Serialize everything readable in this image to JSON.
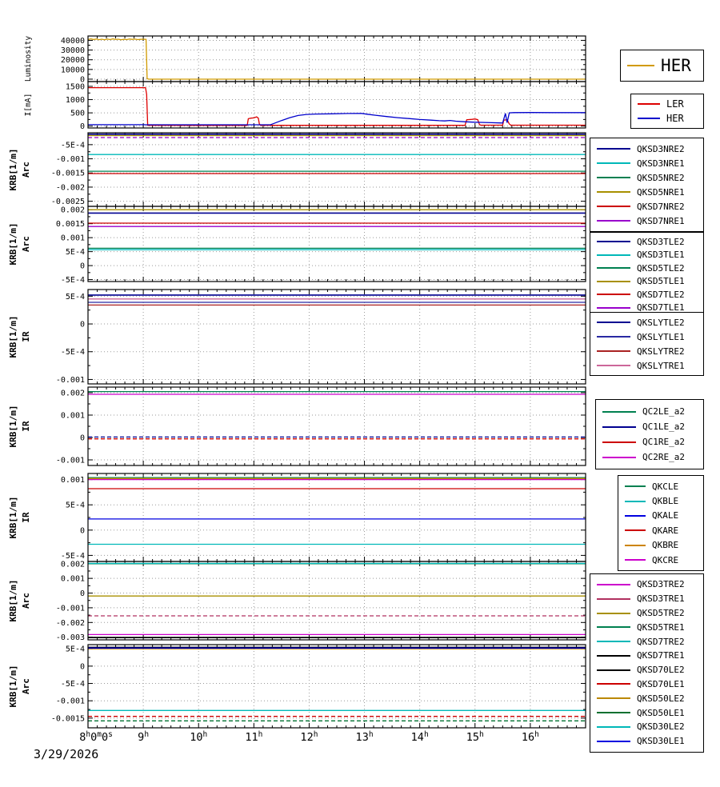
{
  "date_label": "3/29/2026",
  "x_axis": {
    "range": [
      8,
      17
    ],
    "major_hours": [
      8,
      9,
      10,
      11,
      12,
      13,
      14,
      15,
      16
    ],
    "labels": [
      "8^h0^m0^s",
      "9^h",
      "10^h",
      "11^h",
      "12^h",
      "13^h",
      "14^h",
      "15^h",
      "16^h"
    ]
  },
  "chart_data": [
    {
      "type": "line",
      "name": "luminosity",
      "ylabel": [
        "Luminosity"
      ],
      "ylim": [
        -2500,
        44500
      ],
      "yticks": [
        {
          "v": 0,
          "label": "0"
        },
        {
          "v": 10000,
          "label": "10000"
        },
        {
          "v": 20000,
          "label": "20000"
        },
        {
          "v": 30000,
          "label": "30000"
        },
        {
          "v": 40000,
          "label": "40000"
        }
      ],
      "series": [
        {
          "name": "HER",
          "color": "#d19a00",
          "points": [
            [
              8,
              40800
            ],
            [
              8.05,
              41600
            ],
            [
              8.1,
              40900
            ],
            [
              8.15,
              41400
            ],
            [
              8.2,
              40700
            ],
            [
              8.25,
              41200
            ],
            [
              8.3,
              40600
            ],
            [
              8.35,
              41300
            ],
            [
              8.4,
              40800
            ],
            [
              8.45,
              41500
            ],
            [
              8.5,
              40900
            ],
            [
              8.55,
              41200
            ],
            [
              8.6,
              40600
            ],
            [
              8.65,
              41100
            ],
            [
              8.7,
              40800
            ],
            [
              8.75,
              41400
            ],
            [
              8.8,
              41000
            ],
            [
              8.85,
              41300
            ],
            [
              8.9,
              40800
            ],
            [
              8.95,
              41000
            ],
            [
              9.0,
              41200
            ],
            [
              9.05,
              41000
            ],
            [
              9.07,
              500
            ],
            [
              9.1,
              0
            ],
            [
              17,
              0
            ]
          ]
        }
      ]
    },
    {
      "type": "line",
      "name": "beam-current",
      "ylabel": [
        "I[mA]"
      ],
      "ylim": [
        -70,
        1680
      ],
      "yticks": [
        {
          "v": 0,
          "label": "0"
        },
        {
          "v": 500,
          "label": "500"
        },
        {
          "v": 1000,
          "label": "1000"
        },
        {
          "v": 1500,
          "label": "1500"
        }
      ],
      "series": [
        {
          "name": "LER",
          "color": "#dd0000",
          "points": [
            [
              8,
              1450
            ],
            [
              9.04,
              1450
            ],
            [
              9.06,
              1200
            ],
            [
              9.08,
              30
            ],
            [
              10.88,
              25
            ],
            [
              10.9,
              280
            ],
            [
              10.95,
              300
            ],
            [
              11.0,
              310
            ],
            [
              11.05,
              350
            ],
            [
              11.08,
              300
            ],
            [
              11.1,
              80
            ],
            [
              11.12,
              30
            ],
            [
              14.82,
              30
            ],
            [
              14.85,
              240
            ],
            [
              14.95,
              255
            ],
            [
              15.0,
              270
            ],
            [
              15.05,
              240
            ],
            [
              15.08,
              60
            ],
            [
              15.1,
              35
            ],
            [
              15.5,
              35
            ],
            [
              15.52,
              225
            ],
            [
              15.58,
              240
            ],
            [
              15.62,
              80
            ],
            [
              15.65,
              35
            ],
            [
              17,
              35
            ]
          ]
        },
        {
          "name": "HER",
          "color": "#0000cc",
          "points": [
            [
              8,
              55
            ],
            [
              9.0,
              55
            ],
            [
              9.05,
              50
            ],
            [
              11.3,
              50
            ],
            [
              11.35,
              90
            ],
            [
              11.5,
              210
            ],
            [
              11.65,
              320
            ],
            [
              11.8,
              400
            ],
            [
              11.95,
              440
            ],
            [
              12.1,
              455
            ],
            [
              12.4,
              465
            ],
            [
              12.7,
              475
            ],
            [
              12.95,
              480
            ],
            [
              13.05,
              450
            ],
            [
              13.2,
              410
            ],
            [
              13.4,
              360
            ],
            [
              13.6,
              320
            ],
            [
              13.8,
              285
            ],
            [
              14.0,
              250
            ],
            [
              14.2,
              225
            ],
            [
              14.35,
              205
            ],
            [
              14.45,
              195
            ],
            [
              14.55,
              215
            ],
            [
              14.65,
              185
            ],
            [
              14.8,
              165
            ],
            [
              14.95,
              150
            ],
            [
              15.1,
              140
            ],
            [
              15.3,
              128
            ],
            [
              15.45,
              120
            ],
            [
              15.5,
              118
            ],
            [
              15.55,
              480
            ],
            [
              15.58,
              130
            ],
            [
              15.62,
              500
            ],
            [
              15.7,
              510
            ],
            [
              16.0,
              512
            ],
            [
              16.4,
              508
            ],
            [
              17,
              508
            ]
          ]
        }
      ]
    },
    {
      "type": "line",
      "name": "krb-arc-nre",
      "ylabel": [
        "KRB[1/m]",
        "Arc"
      ],
      "ylim": [
        -0.00268,
        -8e-05
      ],
      "yticks": [
        {
          "v": -0.0005,
          "label": "-5E-4"
        },
        {
          "v": -0.001,
          "label": "-0.001"
        },
        {
          "v": -0.0015,
          "label": "-0.0015"
        },
        {
          "v": -0.002,
          "label": "-0.002"
        },
        {
          "v": -0.0025,
          "label": "-0.0025"
        }
      ],
      "series": [
        {
          "name": "QKSD3NRE2",
          "color": "#000090",
          "value": -0.00013,
          "width": 1.6
        },
        {
          "name": "QKSD3NRE1",
          "color": "#00b8b8",
          "value": -0.00085
        },
        {
          "name": "QKSD5NRE2",
          "color": "#008050",
          "value": -0.00144
        },
        {
          "name": "QKSD5NRE1",
          "color": "#a89000",
          "value": -0.00018
        },
        {
          "name": "QKSD7NRE2",
          "color": "#cc0000",
          "value": -0.00152
        },
        {
          "name": "QKSD7NRE1",
          "color": "#9900cc",
          "value": -0.00025,
          "dash": true
        }
      ]
    },
    {
      "type": "line",
      "name": "krb-arc-tle",
      "ylabel": [
        "KRB[1/m]",
        "Arc"
      ],
      "ylim": [
        -0.00057,
        0.00212
      ],
      "yticks": [
        {
          "v": 0.002,
          "label": "0.002"
        },
        {
          "v": 0.0015,
          "label": "0.0015"
        },
        {
          "v": 0.001,
          "label": "0.001"
        },
        {
          "v": 0.0005,
          "label": "5E-4"
        },
        {
          "v": 0,
          "label": "0"
        },
        {
          "v": -0.0005,
          "label": "-5E-4"
        }
      ],
      "series": [
        {
          "name": "QKSD3TLE2",
          "color": "#000090",
          "value": 0.00188,
          "width": 1.6
        },
        {
          "name": "QKSD3TLE1",
          "color": "#00b8b8",
          "value": 0.00057
        },
        {
          "name": "QKSD5TLE2",
          "color": "#008050",
          "value": 0.00062
        },
        {
          "name": "QKSD5TLE1",
          "color": "#a89000",
          "value": 0.002
        },
        {
          "name": "QKSD7TLE2",
          "color": "#cc0000",
          "value": 0.00152
        },
        {
          "name": "QKSD7TLE1",
          "color": "#9900cc",
          "value": 0.0014
        }
      ]
    },
    {
      "type": "line",
      "name": "krb-ir-sly",
      "ylabel": [
        "KRB[1/m]",
        "IR"
      ],
      "ylim": [
        -0.00108,
        0.00062
      ],
      "yticks": [
        {
          "v": 0.0005,
          "label": "5E-4"
        },
        {
          "v": 0,
          "label": "0"
        },
        {
          "v": -0.0005,
          "label": "-5E-4"
        },
        {
          "v": -0.001,
          "label": "-0.001"
        }
      ],
      "series": [
        {
          "name": "QKSLYTLE2",
          "color": "#000090",
          "value": 0.00052,
          "width": 1.6
        },
        {
          "name": "QKSLYTLE1",
          "color": "#2929a3",
          "value": 0.00039
        },
        {
          "name": "QKSLYTRE2",
          "color": "#aa2222",
          "value": 0.00034
        },
        {
          "name": "QKSLYTRE1",
          "color": "#cc6699",
          "value": 0.00045
        }
      ]
    },
    {
      "type": "line",
      "name": "krb-ir-qc",
      "ylabel": [
        "KRB[1/m]",
        "IR"
      ],
      "ylim": [
        -0.00125,
        0.00225
      ],
      "yticks": [
        {
          "v": 0.002,
          "label": "0.002"
        },
        {
          "v": 0.001,
          "label": "0.001"
        },
        {
          "v": 0,
          "label": "0"
        },
        {
          "v": -0.001,
          "label": "-0.001"
        }
      ],
      "series": [
        {
          "name": "QC2LE_a2",
          "color": "#008050",
          "value": 0.00205
        },
        {
          "name": "QC1LE_a2",
          "color": "#000090",
          "value": 2e-05,
          "dash": true
        },
        {
          "name": "QC1RE_a2",
          "color": "#cc0000",
          "value": -6e-05,
          "dash": true
        },
        {
          "name": "QC2RE_a2",
          "color": "#cc00cc",
          "value": 0.00193
        }
      ]
    },
    {
      "type": "line",
      "name": "krb-ir-qk",
      "ylabel": [
        "KRB[1/m]",
        "IR"
      ],
      "ylim": [
        -0.00062,
        0.00112
      ],
      "yticks": [
        {
          "v": 0.001,
          "label": "0.001"
        },
        {
          "v": 0.0005,
          "label": "5E-4"
        },
        {
          "v": 0,
          "label": "0"
        },
        {
          "v": -0.0005,
          "label": "-5E-4"
        }
      ],
      "series": [
        {
          "name": "QKCLE",
          "color": "#008050",
          "value": 0.00104
        },
        {
          "name": "QKBLE",
          "color": "#00b8b8",
          "value": -0.00028
        },
        {
          "name": "QKALE",
          "color": "#0000e0",
          "value": 0.00022
        },
        {
          "name": "QKARE",
          "color": "#cc0000",
          "value": 0.00082
        },
        {
          "name": "QKBRE",
          "color": "#cc8400",
          "value": 0.00102
        },
        {
          "name": "QKCRE",
          "color": "#cc00cc",
          "value": 0.001
        }
      ]
    },
    {
      "type": "line",
      "name": "krb-arc-tre",
      "ylabel": [
        "KRB[1/m]",
        "Arc"
      ],
      "ylim": [
        -0.00318,
        0.00215
      ],
      "yticks": [
        {
          "v": 0.002,
          "label": "0.002"
        },
        {
          "v": 0.001,
          "label": "0.001"
        },
        {
          "v": 0,
          "label": "0"
        },
        {
          "v": -0.001,
          "label": "-0.001"
        },
        {
          "v": -0.002,
          "label": "-0.002"
        },
        {
          "v": -0.003,
          "label": "-0.003"
        }
      ],
      "series": [
        {
          "name": "QKSD3TRE2",
          "color": "#cc00cc",
          "value": -0.00282
        },
        {
          "name": "QKSD3TRE1",
          "color": "#b03060",
          "value": -0.00155,
          "dash": true
        },
        {
          "name": "QKSD5TRE2",
          "color": "#a89000",
          "value": -0.0002
        },
        {
          "name": "QKSD5TRE1",
          "color": "#008050",
          "value": 0.00199
        },
        {
          "name": "QKSD7TRE2",
          "color": "#00b8b8",
          "value": 0.00202
        },
        {
          "name": "QKSD7TRE1",
          "color": "#000000",
          "value": -0.00302,
          "width": 1.8
        }
      ]
    },
    {
      "type": "line",
      "name": "krb-arc-0le",
      "ylabel": [
        "KRB[1/m]",
        "Arc"
      ],
      "ylim": [
        -0.00178,
        0.00062
      ],
      "yticks": [
        {
          "v": 0.0005,
          "label": "5E-4"
        },
        {
          "v": 0,
          "label": "0"
        },
        {
          "v": -0.0005,
          "label": "-5E-4"
        },
        {
          "v": -0.001,
          "label": "-0.001"
        },
        {
          "v": -0.0015,
          "label": "-0.0015"
        }
      ],
      "series": [
        {
          "name": "QKSD70LE2",
          "color": "#000000",
          "value": 0.00054,
          "width": 1.8
        },
        {
          "name": "QKSD70LE1",
          "color": "#cc0000",
          "value": -0.00145,
          "dash": true
        },
        {
          "name": "QKSD50LE2",
          "color": "#bb8800",
          "value": 0.0005
        },
        {
          "name": "QKSD50LE1",
          "color": "#007030",
          "value": -0.00158,
          "dash": true
        },
        {
          "name": "QKSD30LE2",
          "color": "#00b8b8",
          "value": -0.00128
        },
        {
          "name": "QKSD30LE1",
          "color": "#0000e0",
          "value": 0.00052
        }
      ]
    }
  ],
  "legends": [
    {
      "name": "luminosity-legend",
      "items": [
        {
          "label": "HER",
          "color": "#d19a00"
        }
      ]
    },
    {
      "name": "current-legend",
      "items": [
        {
          "label": "LER",
          "color": "#dd0000"
        },
        {
          "label": "HER",
          "color": "#0000cc"
        }
      ]
    },
    {
      "name": "arc-nre-legend",
      "items": [
        {
          "label": "QKSD3NRE2",
          "color": "#000090"
        },
        {
          "label": "QKSD3NRE1",
          "color": "#00b8b8"
        },
        {
          "label": "QKSD5NRE2",
          "color": "#008050"
        },
        {
          "label": "QKSD5NRE1",
          "color": "#a89000"
        },
        {
          "label": "QKSD7NRE2",
          "color": "#cc0000"
        },
        {
          "label": "QKSD7NRE1",
          "color": "#9900cc"
        }
      ]
    },
    {
      "name": "arc-tle-legend",
      "items": [
        {
          "label": "QKSD3TLE2",
          "color": "#000090"
        },
        {
          "label": "QKSD3TLE1",
          "color": "#00b8b8"
        },
        {
          "label": "QKSD5TLE2",
          "color": "#008050"
        },
        {
          "label": "QKSD5TLE1",
          "color": "#a89000"
        },
        {
          "label": "QKSD7TLE2",
          "color": "#cc0000"
        },
        {
          "label": "QKSD7TLE1",
          "color": "#9900cc"
        }
      ]
    },
    {
      "name": "ir-sly-legend",
      "items": [
        {
          "label": "QKSLYTLE2",
          "color": "#000090"
        },
        {
          "label": "QKSLYTLE1",
          "color": "#2929a3"
        },
        {
          "label": "QKSLYTRE2",
          "color": "#aa2222"
        },
        {
          "label": "QKSLYTRE1",
          "color": "#cc6699"
        }
      ]
    },
    {
      "name": "ir-qc-legend",
      "items": [
        {
          "label": "QC2LE_a2",
          "color": "#008050"
        },
        {
          "label": "QC1LE_a2",
          "color": "#000090"
        },
        {
          "label": "QC1RE_a2",
          "color": "#cc0000"
        },
        {
          "label": "QC2RE_a2",
          "color": "#cc00cc"
        }
      ]
    },
    {
      "name": "ir-qk-legend",
      "items": [
        {
          "label": "QKCLE",
          "color": "#008050"
        },
        {
          "label": "QKBLE",
          "color": "#00b8b8"
        },
        {
          "label": "QKALE",
          "color": "#0000e0"
        },
        {
          "label": "QKARE",
          "color": "#cc0000"
        },
        {
          "label": "QKBRE",
          "color": "#cc8400"
        },
        {
          "label": "QKCRE",
          "color": "#cc00cc"
        }
      ]
    },
    {
      "name": "arc-tre-0le-legend",
      "items": [
        {
          "label": "QKSD3TRE2",
          "color": "#cc00cc"
        },
        {
          "label": "QKSD3TRE1",
          "color": "#b03060"
        },
        {
          "label": "QKSD5TRE2",
          "color": "#a89000"
        },
        {
          "label": "QKSD5TRE1",
          "color": "#008050"
        },
        {
          "label": "QKSD7TRE2",
          "color": "#00b8b8"
        },
        {
          "label": "QKSD7TRE1",
          "color": "#000000"
        },
        {
          "label": "QKSD70LE2",
          "color": "#000000"
        },
        {
          "label": "QKSD70LE1",
          "color": "#cc0000"
        },
        {
          "label": "QKSD50LE2",
          "color": "#bb8800"
        },
        {
          "label": "QKSD50LE1",
          "color": "#007030"
        },
        {
          "label": "QKSD30LE2",
          "color": "#00b8b8"
        },
        {
          "label": "QKSD30LE1",
          "color": "#0000e0"
        }
      ]
    }
  ]
}
